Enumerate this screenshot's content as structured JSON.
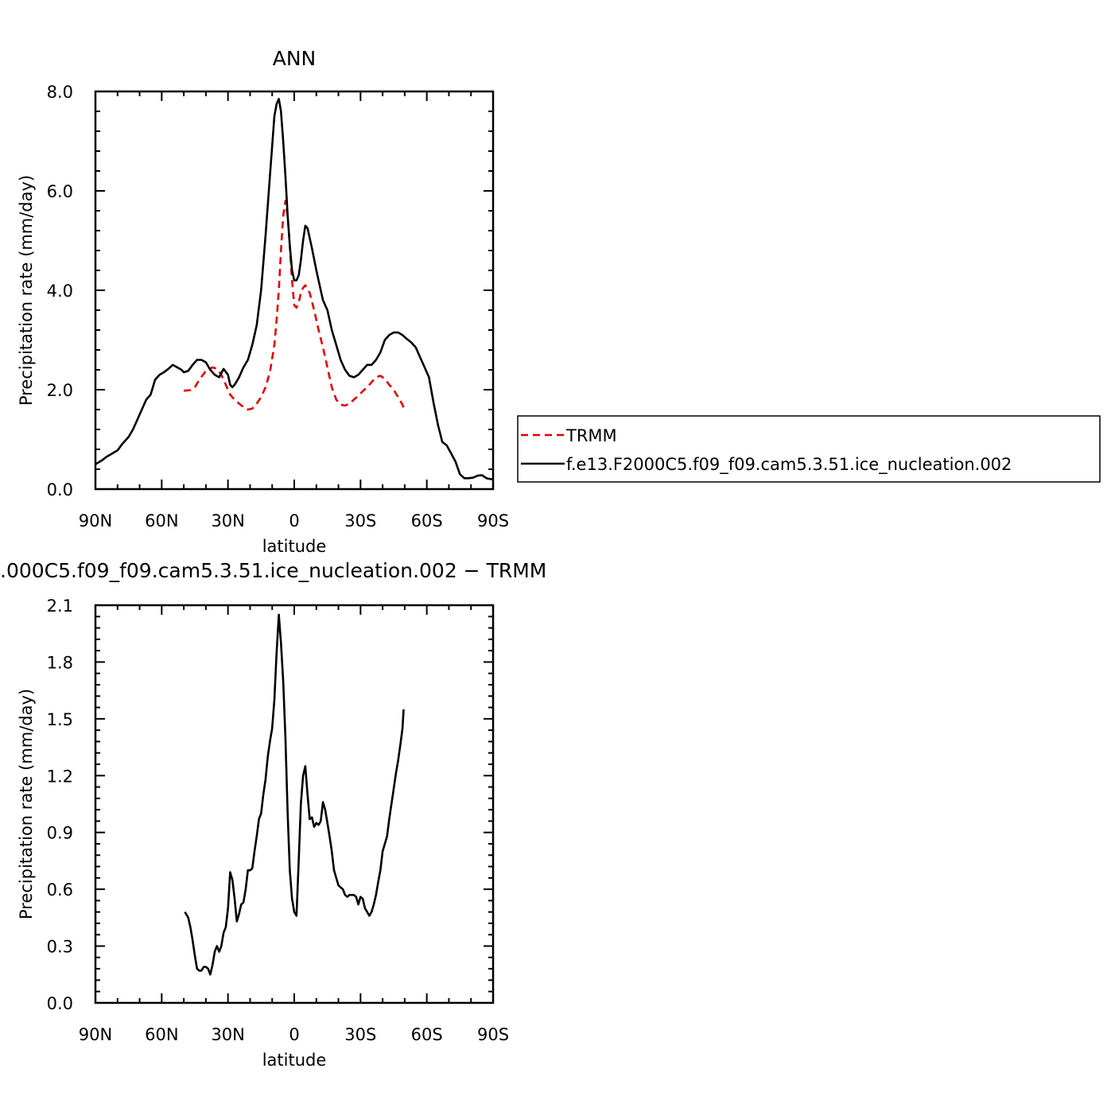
{
  "chart_data": [
    {
      "type": "line",
      "title": "ANN",
      "xlabel": "latitude",
      "ylabel": "Precipitation rate (mm/day)",
      "xlim": [
        90,
        -90
      ],
      "ylim": [
        0,
        8
      ],
      "xticks": [
        90,
        60,
        30,
        0,
        -30,
        -60,
        -90
      ],
      "xtick_labels": [
        "90N",
        "60N",
        "30N",
        "0",
        "30S",
        "60S",
        "90S"
      ],
      "yticks": [
        0,
        2,
        4,
        6,
        8
      ],
      "ytick_labels": [
        "0.0",
        "2.0",
        "4.0",
        "6.0",
        "8.0"
      ],
      "grid": false,
      "legend_position": "right",
      "series": [
        {
          "name": "TRMM",
          "color": "#e00000",
          "style": "dashed",
          "x": [
            50,
            47,
            45,
            43,
            40,
            37,
            35,
            33,
            31,
            29,
            27,
            25,
            23,
            21,
            19,
            17,
            15,
            13,
            11,
            9,
            8,
            7,
            6,
            5,
            4,
            3,
            2,
            1,
            0,
            -1,
            -2,
            -3,
            -4,
            -5,
            -7,
            -9,
            -11,
            -13,
            -15,
            -17,
            -19,
            -21,
            -23,
            -25,
            -27,
            -29,
            -31,
            -33,
            -35,
            -37,
            -39,
            -41,
            -43,
            -45,
            -47,
            -49,
            -50
          ],
          "y": [
            1.98,
            1.99,
            2.05,
            2.2,
            2.38,
            2.45,
            2.42,
            2.3,
            2.1,
            1.9,
            1.8,
            1.72,
            1.65,
            1.6,
            1.62,
            1.72,
            1.85,
            2.05,
            2.35,
            2.9,
            3.4,
            4.0,
            4.8,
            5.5,
            5.8,
            5.5,
            4.9,
            4.2,
            3.7,
            3.65,
            3.75,
            3.95,
            4.05,
            4.1,
            3.95,
            3.6,
            3.2,
            2.85,
            2.45,
            2.05,
            1.8,
            1.7,
            1.68,
            1.72,
            1.8,
            1.88,
            1.97,
            2.05,
            2.15,
            2.25,
            2.28,
            2.22,
            2.1,
            2.0,
            1.85,
            1.7,
            1.58
          ]
        },
        {
          "name": "f.e13.F2000C5.f09_f09.cam5.3.51.ice_nucleation.002",
          "color": "#000000",
          "style": "solid",
          "x": [
            90,
            87,
            85,
            83,
            80,
            78,
            75,
            73,
            71,
            69,
            67,
            65,
            63,
            61,
            59,
            57,
            55,
            53,
            51,
            50,
            48,
            46,
            44,
            42,
            40,
            38,
            36,
            34,
            32,
            30,
            29,
            28,
            27,
            25,
            23,
            21,
            19,
            17,
            15,
            13,
            11,
            9,
            8,
            7,
            6,
            5,
            4,
            3,
            2,
            1,
            0,
            -1,
            -2,
            -3,
            -4,
            -5,
            -6,
            -8,
            -10,
            -12,
            -13,
            -15,
            -17,
            -19,
            -21,
            -23,
            -25,
            -27,
            -29,
            -31,
            -33,
            -35,
            -37,
            -39,
            -41,
            -43,
            -45,
            -47,
            -49,
            -51,
            -53,
            -55,
            -57,
            -59,
            -61,
            -63,
            -65,
            -67,
            -69,
            -71,
            -73,
            -75,
            -77,
            -79,
            -81,
            -83,
            -85,
            -87,
            -89,
            -90
          ],
          "y": [
            0.5,
            0.58,
            0.65,
            0.7,
            0.78,
            0.9,
            1.05,
            1.2,
            1.4,
            1.6,
            1.8,
            1.9,
            2.2,
            2.3,
            2.35,
            2.42,
            2.5,
            2.45,
            2.4,
            2.35,
            2.38,
            2.5,
            2.6,
            2.6,
            2.55,
            2.4,
            2.3,
            2.25,
            2.42,
            2.3,
            2.1,
            2.05,
            2.1,
            2.25,
            2.45,
            2.6,
            2.9,
            3.3,
            4.0,
            5.1,
            6.3,
            7.5,
            7.75,
            7.85,
            7.6,
            7.0,
            6.3,
            5.5,
            4.9,
            4.4,
            4.2,
            4.2,
            4.3,
            4.6,
            5.0,
            5.3,
            5.25,
            4.85,
            4.4,
            4.0,
            3.8,
            3.6,
            3.2,
            2.9,
            2.6,
            2.4,
            2.28,
            2.25,
            2.3,
            2.4,
            2.5,
            2.5,
            2.6,
            2.75,
            3.0,
            3.1,
            3.15,
            3.15,
            3.1,
            3.02,
            2.95,
            2.85,
            2.65,
            2.45,
            2.25,
            1.75,
            1.3,
            0.95,
            0.88,
            0.72,
            0.55,
            0.3,
            0.22,
            0.22,
            0.23,
            0.27,
            0.28,
            0.22,
            0.2,
            0.2
          ]
        }
      ]
    },
    {
      "type": "line",
      "title": ".000C5.f09_f09.cam5.3.51.ice_nucleation.002 − TRMM",
      "xlabel": "latitude",
      "ylabel": "Precipitation rate (mm/day)",
      "xlim": [
        90,
        -90
      ],
      "ylim": [
        0,
        2.1
      ],
      "xticks": [
        90,
        60,
        30,
        0,
        -30,
        -60,
        -90
      ],
      "xtick_labels": [
        "90N",
        "60N",
        "30N",
        "0",
        "30S",
        "60S",
        "90S"
      ],
      "yticks": [
        0,
        0.3,
        0.6,
        0.9,
        1.2,
        1.5,
        1.8,
        2.1
      ],
      "ytick_labels": [
        "0.0",
        "0.3",
        "0.6",
        "0.9",
        "1.2",
        "1.5",
        "1.8",
        "2.1"
      ],
      "grid": false,
      "series": [
        {
          "color": "#000000",
          "style": "solid",
          "x": [
            49.5,
            48,
            47,
            46,
            45,
            44,
            43,
            42,
            41,
            40,
            39,
            38,
            37,
            36,
            35,
            34,
            33,
            32,
            31,
            30,
            29,
            28,
            27,
            26,
            25,
            24,
            23,
            22,
            21,
            20,
            19,
            18,
            17,
            16,
            15,
            14,
            13,
            12,
            11,
            10,
            9,
            8,
            7,
            6,
            5,
            4,
            3,
            2,
            1,
            0,
            -1,
            -2,
            -3,
            -4,
            -5,
            -6,
            -7,
            -8,
            -9,
            -10,
            -11,
            -12,
            -13,
            -14,
            -15,
            -16,
            -17,
            -18,
            -19,
            -20,
            -21,
            -22,
            -23,
            -24,
            -25,
            -26,
            -27,
            -28,
            -29,
            -30,
            -31,
            -32,
            -33,
            -34,
            -35,
            -36,
            -37,
            -38,
            -39,
            -40,
            -41,
            -42,
            -43,
            -44,
            -45,
            -46,
            -47,
            -48,
            -49,
            -49.5
          ],
          "y": [
            0.48,
            0.45,
            0.4,
            0.33,
            0.25,
            0.18,
            0.17,
            0.17,
            0.19,
            0.19,
            0.18,
            0.15,
            0.2,
            0.27,
            0.3,
            0.27,
            0.3,
            0.37,
            0.4,
            0.5,
            0.69,
            0.65,
            0.55,
            0.43,
            0.47,
            0.52,
            0.53,
            0.6,
            0.7,
            0.7,
            0.71,
            0.8,
            0.88,
            0.97,
            1.0,
            1.1,
            1.18,
            1.3,
            1.38,
            1.45,
            1.6,
            1.85,
            2.05,
            1.9,
            1.7,
            1.4,
            1.0,
            0.7,
            0.55,
            0.48,
            0.46,
            0.75,
            1.05,
            1.2,
            1.25,
            1.1,
            0.97,
            0.98,
            0.93,
            0.95,
            0.94,
            0.96,
            1.06,
            1.02,
            0.95,
            0.88,
            0.8,
            0.7,
            0.66,
            0.62,
            0.61,
            0.6,
            0.57,
            0.56,
            0.57,
            0.57,
            0.57,
            0.56,
            0.52,
            0.56,
            0.55,
            0.5,
            0.48,
            0.46,
            0.48,
            0.52,
            0.57,
            0.64,
            0.7,
            0.8,
            0.84,
            0.88,
            0.97,
            1.05,
            1.13,
            1.21,
            1.28,
            1.36,
            1.45,
            1.55
          ]
        }
      ]
    }
  ]
}
